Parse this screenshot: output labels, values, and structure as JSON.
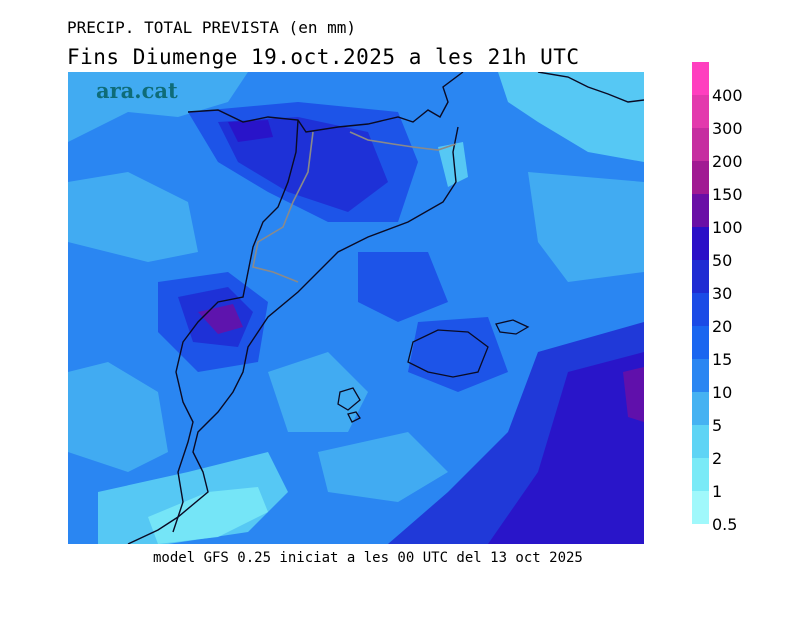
{
  "header": {
    "line1": "PRECIP. TOTAL PREVISTA (en mm)",
    "line2": "Fins Diumenge 19.oct.2025 a les 21h UTC"
  },
  "watermark": "ara.cat",
  "footer": "model GFS 0.25 iniciat a les 00 UTC del 13 oct 2025",
  "legend": {
    "bins": [
      {
        "label": "400",
        "color": "#ff3fbf"
      },
      {
        "label": "300",
        "color": "#e33aad"
      },
      {
        "label": "200",
        "color": "#c62ea0"
      },
      {
        "label": "150",
        "color": "#a11a93"
      },
      {
        "label": "100",
        "color": "#6a0fa6"
      },
      {
        "label": "50",
        "color": "#2b0fc7"
      },
      {
        "label": "30",
        "color": "#1f2cd3"
      },
      {
        "label": "20",
        "color": "#1b4be6"
      },
      {
        "label": "15",
        "color": "#1a66f0"
      },
      {
        "label": "10",
        "color": "#2a86f2"
      },
      {
        "label": "5",
        "color": "#45b2f2"
      },
      {
        "label": "2",
        "color": "#5ed4f5"
      },
      {
        "label": "1",
        "color": "#7aeaf7"
      },
      {
        "label": "0.5",
        "color": "#a0f8fb"
      }
    ]
  },
  "map_colors": {
    "base": "#2a86f2",
    "light1": "#45b2f2",
    "light2": "#5ed4f5",
    "light3": "#7aeaf7",
    "dark1": "#1b4be6",
    "dark2": "#1f2cd3",
    "dark3": "#2b0fc7",
    "purple": "#6a0fa6",
    "coast": "#0a0a24",
    "border": "#8a8a8a"
  }
}
